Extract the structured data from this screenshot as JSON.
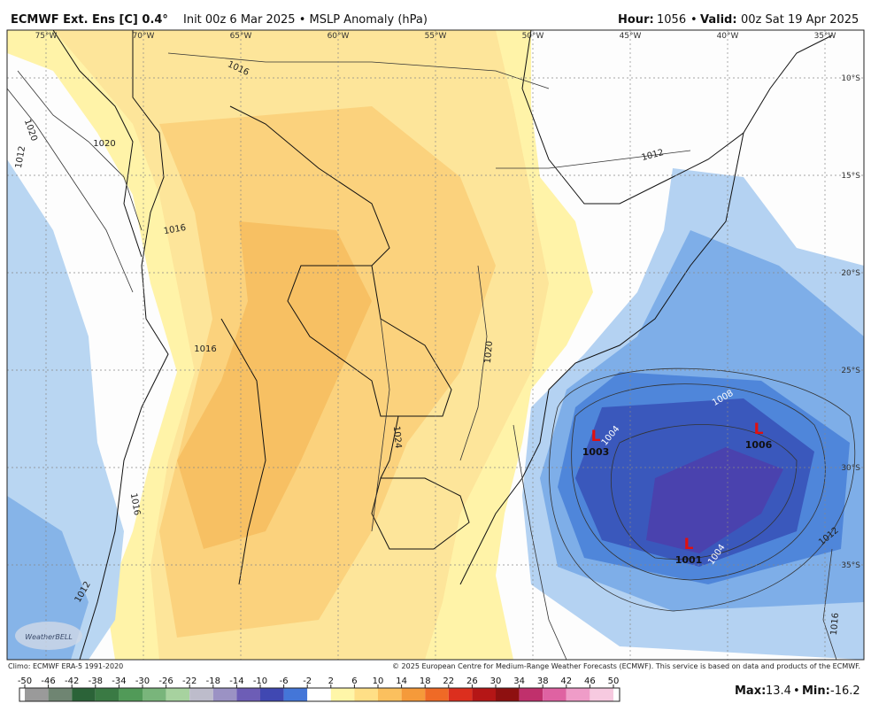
{
  "header": {
    "title_bold": "ECMWF Ext. Ens [C] 0.4°",
    "title_rest": "Init 00z 6 Mar 2025 • MSLP Anomaly (hPa)",
    "hour_label": "Hour:",
    "hour": "1056",
    "separator": "•",
    "valid_label": "Valid:",
    "valid": "00z Sat 19 Apr 2025"
  },
  "map": {
    "lon_labels": [
      "75°W",
      "70°W",
      "65°W",
      "60°W",
      "55°W",
      "50°W",
      "45°W",
      "40°W",
      "35°W"
    ],
    "lat_labels": [
      "10°S",
      "15°S",
      "20°S",
      "25°S",
      "30°S",
      "35°S"
    ],
    "contour_labels": [
      "1016",
      "1020",
      "1020",
      "1016",
      "1012",
      "1016",
      "1020",
      "1024",
      "1016",
      "1012",
      "1012",
      "1008",
      "1004",
      "1004",
      "1012",
      "1016"
    ],
    "lows": [
      {
        "symbol": "L",
        "pressure": "1003"
      },
      {
        "symbol": "L",
        "pressure": "1006"
      },
      {
        "symbol": "L",
        "pressure": "1001"
      }
    ],
    "logo": "WeatherBELL"
  },
  "footer": {
    "climo": "Climo: ECMWF ERA-5 1991-2020",
    "copyright": "© 2025 European Centre for Medium-Range Weather Forecasts (ECMWF). This service is based on data and products of the ECMWF."
  },
  "colorbar": {
    "ticks": [
      -50,
      -46,
      -42,
      -38,
      -34,
      -30,
      -26,
      -22,
      -18,
      -14,
      -10,
      -6,
      -2,
      2,
      6,
      10,
      14,
      18,
      22,
      26,
      30,
      34,
      38,
      42,
      46,
      50
    ],
    "colors": [
      "#9a9a9a",
      "#6f8572",
      "#2b6338",
      "#3a7a44",
      "#519a58",
      "#79b57b",
      "#a7d29f",
      "#bdbccb",
      "#9b92c4",
      "#6d5db6",
      "#4048b2",
      "#4476d8",
      "#ffffff",
      "#fff6a8",
      "#ffdf86",
      "#fbc05e",
      "#f59a3a",
      "#ef6a26",
      "#dc2f1e",
      "#b51616",
      "#8e1010",
      "#c0306c",
      "#df62a2",
      "#ef9cc8",
      "#f7cae0"
    ]
  },
  "stats": {
    "max_label": "Max:",
    "max": 13.4,
    "separator": "•",
    "min_label": "Min:",
    "min": -16.2
  }
}
